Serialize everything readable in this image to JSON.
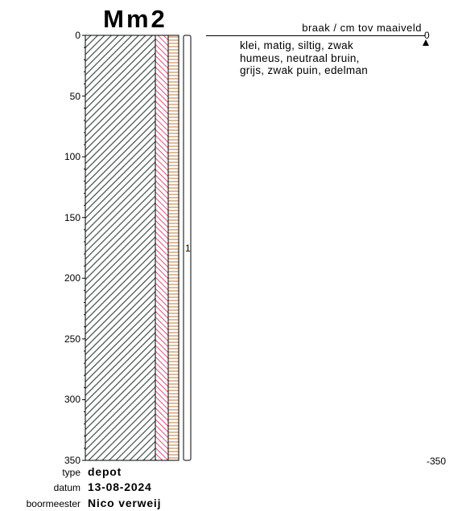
{
  "boring": {
    "name": "Mm2",
    "unit_label": "braak / cm tov maaiveld",
    "top_depth_label": "0",
    "bottom_depth_label": "-350",
    "depth_ticks": [
      "0",
      "50",
      "100",
      "150",
      "200",
      "250",
      "300",
      "350"
    ],
    "layers": [
      {
        "top": 0,
        "bottom": 350,
        "description": [
          "klei, matig, siltig, zwak",
          "humeus, neutraal bruin,",
          "grijs, zwak puin, edelman"
        ]
      }
    ],
    "samples": [
      {
        "label": "1",
        "top": 0,
        "bottom": 350
      }
    ],
    "water_level_marker": "triangle-up",
    "colors": {
      "clay_hatch": "#3d4a45",
      "humus_hatch": "#e0507a",
      "rubble_hatch": "#c07a3a"
    }
  },
  "meta": {
    "type_label": "type",
    "type_value": "depot",
    "date_label": "datum",
    "date_value": "13-08-2024",
    "driller_label": "boormeester",
    "driller_value": "Nico verweij"
  }
}
